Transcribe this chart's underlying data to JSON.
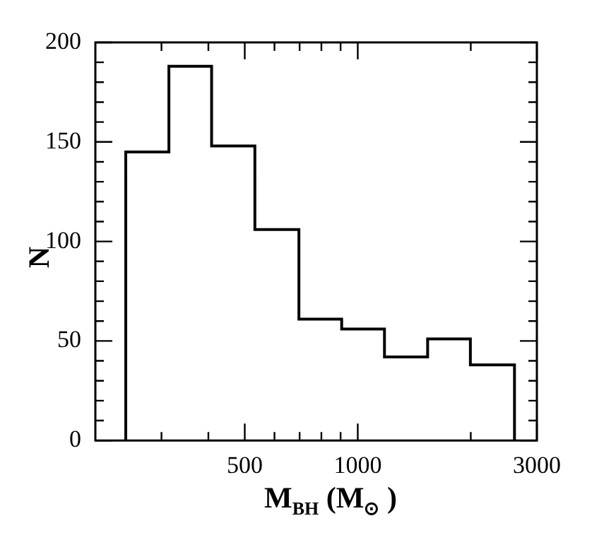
{
  "chart_data": {
    "type": "histogram",
    "bins": [
      241,
      314,
      408,
      532,
      697,
      906,
      1178,
      1535,
      1995,
      2615
    ],
    "values": [
      145,
      188,
      148,
      106,
      61,
      56,
      42,
      51,
      38
    ],
    "color": "#000000",
    "xlabel": "M$_{BH}$ (M$_{⊙}$ )",
    "ylabel": "N",
    "log": "x",
    "xlim": [
      200,
      3000
    ],
    "xticks": [
      {
        "value": 300,
        "label": null
      },
      {
        "value": 400,
        "label": null
      },
      500,
      {
        "value": 600,
        "label": null
      },
      {
        "value": 700,
        "label": null
      },
      {
        "value": 800,
        "label": null
      },
      {
        "value": 900,
        "label": null
      },
      1000,
      {
        "value": 2000,
        "label": null
      },
      3000
    ],
    "ylim": [
      0,
      200
    ],
    "yticks": [
      0,
      {
        "value": 10,
        "label": null
      },
      {
        "value": 20,
        "label": null
      },
      {
        "value": 30,
        "label": null
      },
      {
        "value": 40,
        "label": null
      },
      50,
      {
        "value": 60,
        "label": null
      },
      {
        "value": 70,
        "label": null
      },
      {
        "value": 80,
        "label": null
      },
      {
        "value": 90,
        "label": null
      },
      100,
      {
        "value": 110,
        "label": null
      },
      {
        "value": 120,
        "label": null
      },
      {
        "value": 130,
        "label": null
      },
      {
        "value": 140,
        "label": null
      },
      150,
      {
        "value": 160,
        "label": null
      },
      {
        "value": 170,
        "label": null
      },
      {
        "value": 180,
        "label": null
      },
      {
        "value": 190,
        "label": null
      },
      200
    ],
    "grid": false,
    "legend": false
  }
}
